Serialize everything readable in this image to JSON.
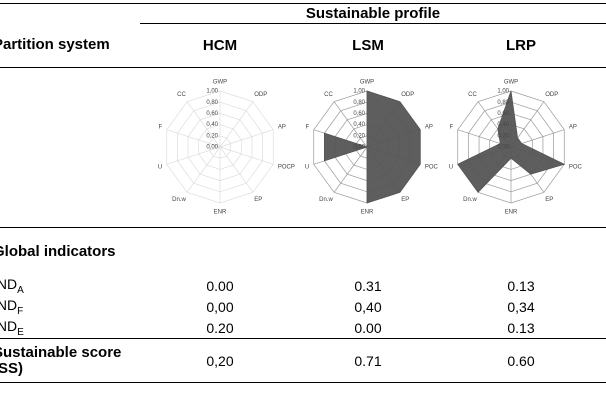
{
  "table": {
    "caption": "Sustainable profile",
    "columns": [
      "Partition system",
      "HCM",
      "LSM",
      "LRP"
    ],
    "section": "Global indicators",
    "rows": [
      {
        "label": "IND",
        "sub": "A",
        "cells": [
          "0.00",
          "0.31",
          "0.13"
        ]
      },
      {
        "label": "IND",
        "sub": "F",
        "cells": [
          "0,00",
          "0,40",
          "0,34"
        ]
      },
      {
        "label": "IND",
        "sub": "E",
        "cells": [
          "0.20",
          "0.00",
          "0.13"
        ]
      }
    ],
    "total": {
      "label": "Sustainable score (SS)",
      "cells": [
        "0,20",
        "0.71",
        "0.60"
      ]
    }
  },
  "chart_data": [
    {
      "type": "radar",
      "categories": [
        "GWP",
        "ODP",
        "AP",
        "POCP",
        "EP",
        "ENR",
        "Dn.w",
        "U",
        "F",
        "CC"
      ],
      "values": [
        0,
        0,
        0,
        0,
        0,
        0,
        0,
        0,
        0,
        0
      ],
      "color": "#555555",
      "grid_color": "#dddddd",
      "ylim": [
        0,
        1
      ],
      "yticks": [
        {
          "value": 0,
          "label": "0,00"
        },
        {
          "value": 0.2,
          "label": "0,20"
        },
        {
          "value": 0.4,
          "label": "0,40"
        },
        {
          "value": 0.6,
          "label": "0,60"
        },
        {
          "value": 0.8,
          "label": "0,80"
        },
        {
          "value": 1,
          "label": "1,00"
        }
      ]
    },
    {
      "type": "radar",
      "categories": [
        "GWP",
        "ODP",
        "AP",
        "POC",
        "EP",
        "ENR",
        "Dn.w",
        "U",
        "F",
        "CC"
      ],
      "values": [
        1,
        1,
        1,
        1,
        1,
        1,
        0,
        0.8,
        0.8,
        0
      ],
      "color": "#555555",
      "grid_color": "#999999",
      "ylim": [
        0,
        1
      ],
      "yticks": [
        {
          "value": 0,
          "label": "0,00"
        },
        {
          "value": 0.2,
          "label": "0,20"
        },
        {
          "value": 0.4,
          "label": "0,40"
        },
        {
          "value": 0.6,
          "label": "0,60"
        },
        {
          "value": 0.8,
          "label": "0,80"
        },
        {
          "value": 1,
          "label": "1,00"
        }
      ]
    },
    {
      "type": "radar",
      "categories": [
        "GWP",
        "ODP",
        "AP",
        "POC",
        "EP",
        "ENR",
        "Dn.w",
        "U",
        "F",
        "CC"
      ],
      "values": [
        1,
        0.2,
        0.2,
        1,
        0.6,
        0.2,
        1,
        1,
        0.2,
        0.4
      ],
      "color": "#555555",
      "grid_color": "#999999",
      "ylim": [
        0,
        1
      ],
      "yticks": [
        {
          "value": 0,
          "label": "0,00"
        },
        {
          "value": 0.2,
          "label": "0,20"
        },
        {
          "value": 0.4,
          "label": "0,40"
        },
        {
          "value": 0.6,
          "label": "0,60"
        },
        {
          "value": 0.8,
          "label": "0,80"
        },
        {
          "value": 1,
          "label": "1,00"
        }
      ]
    }
  ]
}
